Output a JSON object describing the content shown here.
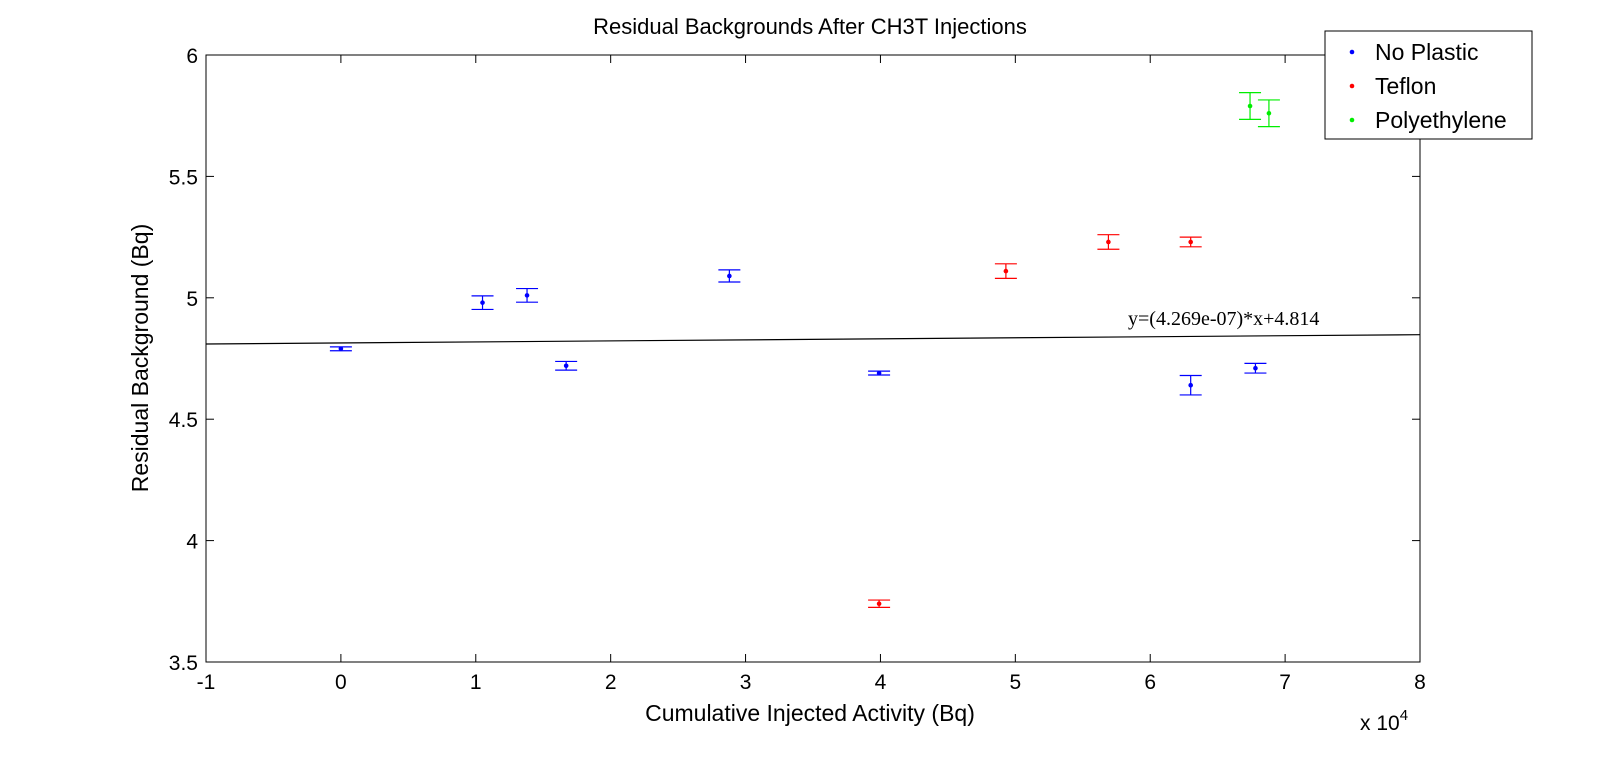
{
  "chart_data": {
    "type": "scatter",
    "title": "Residual Backgrounds After CH3T Injections",
    "xlabel": "Cumulative Injected Activity (Bq)",
    "ylabel": "Residual Background (Bq)",
    "x_multiplier_label": "x 10",
    "x_multiplier_exponent": "4",
    "xlim": [
      -1,
      8
    ],
    "ylim": [
      3.5,
      6
    ],
    "x_ticks": [
      -1,
      0,
      1,
      2,
      3,
      4,
      5,
      6,
      7,
      8
    ],
    "y_ticks": [
      3.5,
      4,
      4.5,
      5,
      5.5,
      6
    ],
    "x_tick_labels": [
      "-1",
      "0",
      "1",
      "2",
      "3",
      "4",
      "5",
      "6",
      "7",
      "8"
    ],
    "y_tick_labels": [
      "3.5",
      "4",
      "4.5",
      "5",
      "5.5",
      "6"
    ],
    "grid": false,
    "legend_position": "top-right",
    "series": [
      {
        "name": "No Plastic",
        "color": "#0000ff",
        "points": [
          {
            "x": 0.0,
            "y": 4.79,
            "err": 0.008
          },
          {
            "x": 1.05,
            "y": 4.98,
            "err": 0.028
          },
          {
            "x": 1.38,
            "y": 5.01,
            "err": 0.028
          },
          {
            "x": 1.67,
            "y": 4.72,
            "err": 0.018
          },
          {
            "x": 2.88,
            "y": 5.09,
            "err": 0.025
          },
          {
            "x": 3.99,
            "y": 4.69,
            "err": 0.008
          },
          {
            "x": 6.3,
            "y": 4.64,
            "err": 0.04
          },
          {
            "x": 6.78,
            "y": 4.71,
            "err": 0.02
          }
        ]
      },
      {
        "name": "Teflon",
        "color": "#ff0000",
        "points": [
          {
            "x": 3.99,
            "y": 3.74,
            "err": 0.015
          },
          {
            "x": 4.93,
            "y": 5.11,
            "err": 0.03
          },
          {
            "x": 5.69,
            "y": 5.23,
            "err": 0.03
          },
          {
            "x": 6.3,
            "y": 5.23,
            "err": 0.02
          }
        ]
      },
      {
        "name": "Polyethylene",
        "color": "#00ee00",
        "points": [
          {
            "x": 6.74,
            "y": 5.79,
            "err": 0.055
          },
          {
            "x": 6.88,
            "y": 5.76,
            "err": 0.055
          }
        ]
      }
    ],
    "fit_line": {
      "slope_per_bq": 4.269e-07,
      "intercept": 4.814,
      "x_range": [
        -1,
        8
      ],
      "label": "y=(4.269e-07)*x+4.814"
    }
  }
}
